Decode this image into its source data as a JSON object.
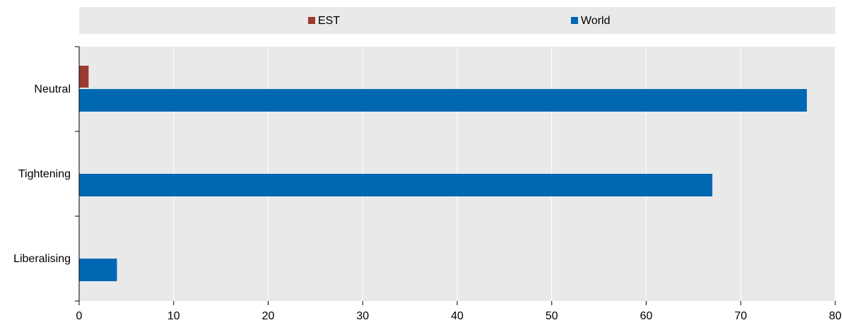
{
  "chart_data": {
    "type": "bar",
    "orientation": "horizontal",
    "categories": [
      "Neutral",
      "Tightening",
      "Liberalising"
    ],
    "series": [
      {
        "name": "EST",
        "color": "#9b3a2e",
        "values": [
          1,
          0,
          0
        ]
      },
      {
        "name": "World",
        "color": "#0068b3",
        "values": [
          77,
          67,
          4
        ]
      }
    ],
    "xlim": [
      0,
      80
    ],
    "xticks": [
      "0",
      "10",
      "20",
      "30",
      "40",
      "50",
      "60",
      "70",
      "80"
    ],
    "grid": true,
    "legend_position": "top",
    "colors": {
      "plot_background": "#e9e9e9",
      "legend_background": "#e9e9e9",
      "grid": "#ffffff"
    }
  }
}
